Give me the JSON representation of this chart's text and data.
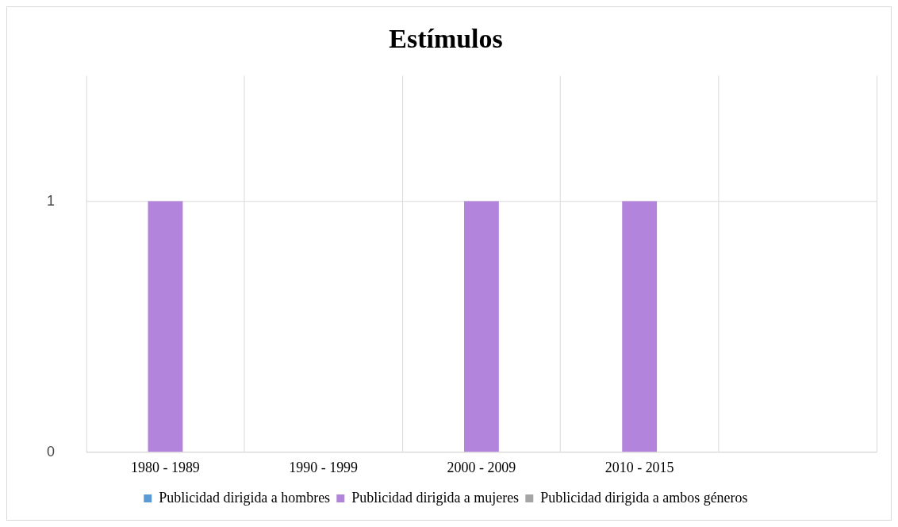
{
  "chart_data": {
    "type": "bar",
    "title": "Estímulos",
    "categories": [
      "1980 - 1989",
      "1990 - 1999",
      "2000 - 2009",
      "2010 - 2015",
      null
    ],
    "series": [
      {
        "name": "Publicidad dirigida a hombres",
        "color": "#5b9bd5",
        "values": [
          0,
          0,
          0,
          0,
          0
        ]
      },
      {
        "name": "Publicidad dirigida a mujeres",
        "color": "#b384dc",
        "values": [
          1,
          0,
          1,
          1,
          0
        ]
      },
      {
        "name": "Publicidad dirigida a ambos géneros",
        "color": "#a5a5a5",
        "values": [
          0,
          0,
          0,
          0,
          0
        ]
      }
    ],
    "ylim": [
      0,
      1.5
    ],
    "yticks": [
      0,
      1
    ],
    "grid": true,
    "legend": "bottom"
  }
}
